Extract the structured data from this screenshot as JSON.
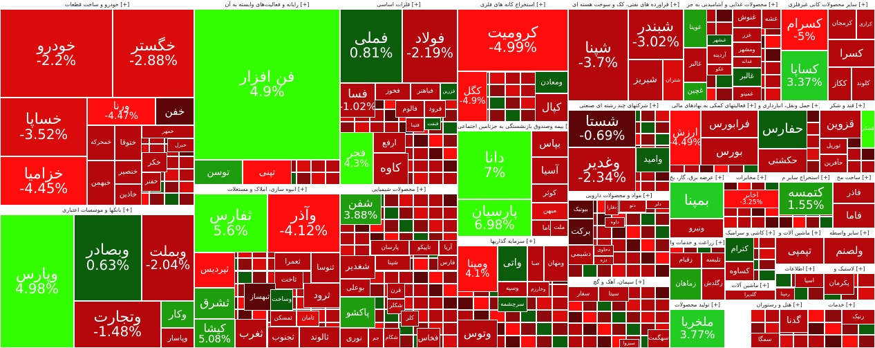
{
  "colors": {
    "strong_red": "#ff0d0d",
    "red": "#d90b0b",
    "dark_red": "#b3070b",
    "darker_red": "#8c0a0c",
    "maroon": "#5c0507",
    "dark_green": "#0b5c0b",
    "mid_green": "#1e9e0f",
    "bright_green": "#33ff00",
    "green": "#22cc22"
  },
  "sectors": [
    {
      "header": "خودرو و ساخت قطعات [+]",
      "tiles": [
        {
          "name": "خودرو",
          "pct": "-2.2%",
          "c": "red"
        },
        {
          "name": "خگستر",
          "pct": "-2.88%",
          "c": "red"
        },
        {
          "name": "خساپا",
          "pct": "-3.52%",
          "c": "red"
        },
        {
          "name": "ورنا",
          "pct": "-4.47%",
          "c": "strong_red"
        },
        {
          "name": "خفن",
          "pct": "",
          "c": "maroon"
        },
        {
          "name": "خمهر",
          "pct": "",
          "c": "dark_red"
        },
        {
          "name": "خبرل",
          "pct": "",
          "c": "dark_red"
        },
        {
          "name": "خمحرکه",
          "pct": "",
          "c": "dark_red"
        },
        {
          "name": "ختوقا",
          "pct": "",
          "c": "dark_red"
        },
        {
          "name": "خزامیا",
          "pct": "-4.45%",
          "c": "strong_red"
        },
        {
          "name": "خنصیر",
          "pct": "",
          "c": "dark_red"
        },
        {
          "name": "خبهمن",
          "pct": "",
          "c": "dark_red"
        },
        {
          "name": "خاذین",
          "pct": "",
          "c": "dark_red"
        },
        {
          "name": "خکر",
          "pct": "",
          "c": "dark_red"
        },
        {
          "name": "خفنر",
          "pct": "",
          "c": "dark_red"
        }
      ]
    },
    {
      "header": "رایانه و فعالیت‌های وابسته به آن [+]",
      "tiles": [
        {
          "name": "فن افزار",
          "pct": "4.9%",
          "c": "bright_green"
        },
        {
          "name": "توسن",
          "pct": "",
          "c": "mid_green"
        },
        {
          "name": "تپنی",
          "pct": "",
          "c": "strong_red"
        }
      ]
    },
    {
      "header": "فلزات اساسی [+]",
      "tiles": [
        {
          "name": "فملی",
          "pct": "0.81%",
          "c": "dark_green"
        },
        {
          "name": "فولاد",
          "pct": "-2.19%",
          "c": "dark_red"
        },
        {
          "name": "فخوز",
          "pct": "",
          "c": "dark_red"
        },
        {
          "name": "فباهنر",
          "pct": "",
          "c": "dark_red"
        },
        {
          "name": "فزرین",
          "pct": "",
          "c": "dark_green"
        },
        {
          "name": "فسا",
          "pct": "-1.02%",
          "c": "dark_red"
        },
        {
          "name": "فالوم",
          "pct": "",
          "c": "dark_red"
        },
        {
          "name": "فرود",
          "pct": "",
          "c": "dark_red"
        },
        {
          "name": "فنفت",
          "pct": "",
          "c": "dark_green"
        },
        {
          "name": "فتینا",
          "pct": "",
          "c": "dark_red"
        },
        {
          "name": "ارفع",
          "pct": "",
          "c": "dark_red"
        },
        {
          "name": "کاوه",
          "pct": "",
          "c": "dark_red"
        },
        {
          "name": "فجر",
          "pct": "4.3%",
          "c": "bright_green"
        }
      ]
    },
    {
      "header": "استخراج کانه های فلزی [+]",
      "tiles": [
        {
          "name": "کرومیت",
          "pct": "-4.99%",
          "c": "strong_red"
        },
        {
          "name": "کگل",
          "pct": "-4.9%",
          "c": "strong_red"
        },
        {
          "name": "ومعادن",
          "pct": "",
          "c": "dark_green"
        },
        {
          "name": "کپال",
          "pct": "",
          "c": "dark_red"
        }
      ]
    },
    {
      "header": "فراورده های نفتی، کک و سوخت هسته ای [+]",
      "tiles": [
        {
          "name": "شپنا",
          "pct": "-3.7%",
          "c": "dark_red"
        },
        {
          "name": "شبندر",
          "pct": "-3.02%",
          "c": "dark_red"
        },
        {
          "name": "شبریز",
          "pct": "",
          "c": "dark_red"
        },
        {
          "name": "شتران",
          "pct": "",
          "c": "red"
        }
      ]
    },
    {
      "header": "محصولات غذایی و آشامیدنی به جز [+]",
      "tiles": [
        {
          "name": "غویتا",
          "pct": "",
          "c": "mid_green"
        },
        {
          "name": "غالبر",
          "pct": "",
          "c": "dark_red"
        },
        {
          "name": "غشه",
          "pct": "",
          "c": "dark_red"
        },
        {
          "name": "غنوش",
          "pct": "",
          "c": "dark_red"
        },
        {
          "name": "غزر",
          "pct": "",
          "c": "dark_red"
        },
        {
          "name": "ومشهر",
          "pct": "",
          "c": "dark_red"
        },
        {
          "name": "غبشهر",
          "pct": "",
          "c": "dark_green"
        },
        {
          "name": "آردینه",
          "pct": "",
          "c": "dark_red"
        },
        {
          "name": "غدانه",
          "pct": "",
          "c": "dark_red"
        },
        {
          "name": "غکو",
          "pct": "",
          "c": "dark_red"
        },
        {
          "name": "غالبر",
          "pct": "",
          "c": "dark_green"
        },
        {
          "name": "غمینو",
          "pct": "",
          "c": "dark_red"
        },
        {
          "name": "غچین",
          "pct": "",
          "c": "mid_green"
        }
      ]
    },
    {
      "header": "سایر محصولات کانی غیرفلزی [+]",
      "tiles": [
        {
          "name": "کسرام",
          "pct": "-5%",
          "c": "strong_red"
        },
        {
          "name": "کرمجان",
          "pct": "",
          "c": "dark_red"
        },
        {
          "name": "کرازی",
          "pct": "",
          "c": "dark_red"
        },
        {
          "name": "کسرا",
          "pct": "",
          "c": "dark_red"
        },
        {
          "name": "کساپا",
          "pct": "3.37%",
          "c": "green"
        },
        {
          "name": "ککاز",
          "pct": "",
          "c": "dark_red"
        },
        {
          "name": "کلوند",
          "pct": "",
          "c": "dark_red"
        }
      ]
    },
    {
      "header": "بیمه وصندوق بازنشستگی به جزتامین اجتماعی [+]",
      "tiles": [
        {
          "name": "دانا",
          "pct": "7%",
          "c": "bright_green"
        },
        {
          "name": "بپاس",
          "pct": "",
          "c": "dark_red"
        },
        {
          "name": "آسیا",
          "pct": "",
          "c": "dark_red"
        },
        {
          "name": "کوثر",
          "pct": "",
          "c": "dark_red"
        },
        {
          "name": "میهن",
          "pct": "",
          "c": "red"
        },
        {
          "name": "پارسیان",
          "pct": "6.98%",
          "c": "bright_green"
        },
        {
          "name": "بساما",
          "pct": "",
          "c": "dark_red"
        },
        {
          "name": "ملت",
          "pct": "",
          "c": "dark_red"
        }
      ]
    },
    {
      "header": "شرکتهای چند رشته ای صنعتی [+]",
      "tiles": [
        {
          "name": "شستا",
          "pct": "-0.69%",
          "c": "maroon"
        },
        {
          "name": "وغدیر",
          "pct": "-2.34%",
          "c": "dark_red"
        },
        {
          "name": "وامید",
          "pct": "",
          "c": "dark_green"
        }
      ]
    },
    {
      "header": "فعالیتهای کمکی به نهادهای مالی [+]",
      "tiles": [
        {
          "name": "ارزش",
          "pct": "-4.49%",
          "c": "strong_red"
        },
        {
          "name": "فرابورس",
          "pct": "",
          "c": "dark_red"
        },
        {
          "name": "بورس",
          "pct": "",
          "c": "dark_red"
        }
      ]
    },
    {
      "header": "حمل ونقل، انبارداری و [+]",
      "tiles": [
        {
          "name": "حفارس",
          "pct": "",
          "c": "dark_green"
        },
        {
          "name": "حکشتی",
          "pct": "",
          "c": "dark_red"
        }
      ]
    },
    {
      "header": "قند و شکر [+]",
      "tiles": [
        {
          "name": "قزوین",
          "pct": "",
          "c": "dark_red"
        },
        {
          "name": "قشکر",
          "pct": "",
          "c": "bright_green"
        },
        {
          "name": "توریل",
          "pct": "",
          "c": "dark_red"
        },
        {
          "name": "حآفرین",
          "pct": "",
          "c": "dark_red"
        }
      ]
    },
    {
      "header": "بانکها و موسسات اعتباری [+]",
      "tiles": [
        {
          "name": "وپارس",
          "pct": "4.98%",
          "c": "bright_green"
        },
        {
          "name": "وبصادر",
          "pct": "0.63%",
          "c": "dark_green"
        },
        {
          "name": "وبملت",
          "pct": "-2.04%",
          "c": "dark_red"
        },
        {
          "name": "وتجارت",
          "pct": "-1.48%",
          "c": "dark_red"
        },
        {
          "name": "وکار",
          "pct": "",
          "c": "mid_green"
        },
        {
          "name": "وپاسار",
          "pct": "",
          "c": "dark_red"
        }
      ]
    },
    {
      "header": "انبوه سازی، املاک و مستغلات [+]",
      "tiles": [
        {
          "name": "ثفارس",
          "pct": "5.6%",
          "c": "bright_green"
        },
        {
          "name": "وآذر",
          "pct": "-4.12%",
          "c": "strong_red"
        },
        {
          "name": "ثاخت",
          "pct": "",
          "c": "dark_red"
        },
        {
          "name": "ثعمرا",
          "pct": "",
          "c": "dark_red"
        },
        {
          "name": "ثنوسا",
          "pct": "",
          "c": "dark_red"
        },
        {
          "name": "ثبهساز",
          "pct": "",
          "c": "maroon"
        },
        {
          "name": "ثپردیس",
          "pct": "",
          "c": "strong_red"
        },
        {
          "name": "ثشرق",
          "pct": "",
          "c": "mid_green"
        },
        {
          "name": "ثرود",
          "pct": "",
          "c": "dark_red"
        },
        {
          "name": "وساخت",
          "pct": "",
          "c": "dark_green"
        },
        {
          "name": "ثمسکن",
          "pct": "",
          "c": "dark_red"
        },
        {
          "name": "ثامان",
          "pct": "",
          "c": "red"
        },
        {
          "name": "ثالوند",
          "pct": "",
          "c": "dark_red"
        },
        {
          "name": "ثجنوب",
          "pct": "",
          "c": "dark_red"
        },
        {
          "name": "کیشا",
          "pct": "5.08%",
          "c": "mid_green"
        },
        {
          "name": "ثغرب",
          "pct": "",
          "c": "dark_red"
        }
      ]
    },
    {
      "header": "محصولات شیمیایی [+]",
      "tiles": [
        {
          "name": "شفن",
          "pct": "3.88%",
          "c": "mid_green"
        },
        {
          "name": "پارسان",
          "pct": "",
          "c": "dark_red"
        },
        {
          "name": "تاپیکو",
          "pct": "",
          "c": "dark_red"
        },
        {
          "name": "آریا",
          "pct": "",
          "c": "dark_red"
        },
        {
          "name": "شپنا",
          "pct": "",
          "c": "dark_red"
        },
        {
          "name": "فارس",
          "pct": "",
          "c": "dark_red"
        },
        {
          "name": "بوعلی",
          "pct": "",
          "c": "dark_red"
        },
        {
          "name": "شغدیر",
          "pct": "",
          "c": "dark_red"
        },
        {
          "name": "قرن",
          "pct": "",
          "c": "dark_red"
        },
        {
          "name": "پاکشو",
          "pct": "",
          "c": "mid_green"
        },
        {
          "name": "شکلر",
          "pct": "",
          "c": "dark_red"
        },
        {
          "name": "کلر",
          "pct": "",
          "c": "dark_red"
        },
        {
          "name": "نوری",
          "pct": "",
          "c": "dark_red"
        },
        {
          "name": "جم",
          "pct": "",
          "c": "dark_red"
        },
        {
          "name": "شکام",
          "pct": "",
          "c": "dark_red"
        },
        {
          "name": "فخاس",
          "pct": "",
          "c": "dark_red"
        }
      ]
    },
    {
      "header": "سرمایه گذاریها [+]",
      "tiles": [
        {
          "name": "واتی",
          "pct": "",
          "c": "dark_green"
        },
        {
          "name": "صبا",
          "pct": "",
          "c": "dark_red"
        },
        {
          "name": "ومهان",
          "pct": "",
          "c": "dark_red"
        },
        {
          "name": "وسپه",
          "pct": "",
          "c": "dark_red"
        },
        {
          "name": "ومپنا",
          "pct": "4.1%",
          "c": "strong_red"
        },
        {
          "name": "وخارزم",
          "pct": "",
          "c": "dark_red"
        },
        {
          "name": "سرچشمه",
          "pct": "",
          "c": "dark_green"
        },
        {
          "name": "وتوس",
          "pct": "",
          "c": "dark_red"
        }
      ]
    },
    {
      "header": "مواد و محصولات دارویی [+]",
      "tiles": [
        {
          "name": "دلر",
          "pct": "",
          "c": "dark_red"
        },
        {
          "name": "دتو",
          "pct": "",
          "c": "dark_red"
        },
        {
          "name": "دفارا",
          "pct": "",
          "c": "dark_red"
        },
        {
          "name": "بیوتیک",
          "pct": "",
          "c": "maroon"
        },
        {
          "name": "داوه",
          "pct": "",
          "c": "dark_red"
        },
        {
          "name": "برکت",
          "pct": "",
          "c": "maroon"
        },
        {
          "name": "دشیمی",
          "pct": "",
          "c": "dark_red"
        },
        {
          "name": "دحاوی",
          "pct": "",
          "c": "dark_red"
        },
        {
          "name": "دزه",
          "pct": "",
          "c": "dark_red"
        }
      ]
    },
    {
      "header": "سیمان، آهک و گچ [+]",
      "tiles": [
        {
          "name": "سفار",
          "pct": "",
          "c": "dark_red"
        },
        {
          "name": "سیتا",
          "pct": "",
          "c": "dark_red"
        },
        {
          "name": "سبزوا",
          "pct": "",
          "c": "dark_red"
        },
        {
          "name": "سهگمت",
          "pct": "",
          "c": "dark_red"
        }
      ]
    },
    {
      "header": "عرضه برق، گاز، بخ [+]",
      "tiles": [
        {
          "name": "بمپنا",
          "pct": "",
          "c": "green"
        },
        {
          "name": "ونیرو",
          "pct": "",
          "c": "dark_red"
        }
      ]
    },
    {
      "header": "مخابرات [+]",
      "tiles": [
        {
          "name": "اخابر",
          "pct": "-3.25%",
          "c": "strong_red"
        }
      ]
    },
    {
      "header": "استخراج سایر م [+]",
      "tiles": [
        {
          "name": "کتمسه",
          "pct": "1.55%",
          "c": "mid_green"
        }
      ]
    },
    {
      "header": "ساخت مح [+]",
      "tiles": [
        {
          "name": "فاذر",
          "pct": "",
          "c": "dark_red"
        },
        {
          "name": "فاما",
          "pct": "",
          "c": "dark_red"
        }
      ]
    },
    {
      "header": "زراعت و خدمات وا [+]",
      "tiles": [
        {
          "name": "زقیام",
          "pct": "",
          "c": "dark_red"
        },
        {
          "name": "تلیسه",
          "pct": "",
          "c": "dark_red"
        },
        {
          "name": "زماهان",
          "pct": "",
          "c": "mid_green"
        },
        {
          "name": "زگلدش",
          "pct": "",
          "c": "dark_red"
        }
      ]
    },
    {
      "header": "کاشی و سرامیک [+]",
      "tiles": [
        {
          "name": "کترام",
          "pct": "",
          "c": "dark_green"
        },
        {
          "name": "کساوه",
          "pct": "",
          "c": "dark_red"
        }
      ]
    },
    {
      "header": "ماشین آلات و [+]",
      "tiles": [
        {
          "name": "تپمپی",
          "pct": "",
          "c": "dark_red"
        }
      ]
    },
    {
      "header": "سایر واسطه [+]",
      "tiles": [
        {
          "name": "ولصنم",
          "pct": "",
          "c": "dark_red"
        }
      ]
    },
    {
      "header": "هتل و رستوران [+]",
      "tiles": [
        {
          "name": "گدنا",
          "pct": "",
          "c": "dark_red"
        },
        {
          "name": "سمگا",
          "pct": "",
          "c": "dark_red"
        }
      ]
    },
    {
      "header": "تولید محصولات [+]",
      "tiles": [
        {
          "name": "ملخریا",
          "pct": "3.77%",
          "c": "green"
        }
      ]
    },
    {
      "header": "اطلاعات [+]",
      "tiles": [
        {
          "name": "اسیا",
          "pct": "",
          "c": "dark_red"
        },
        {
          "name": "رمپنا",
          "pct": "",
          "c": "dark_red"
        }
      ]
    },
    {
      "header": "ماشین آلات [+]",
      "tiles": [
        {
          "name": "گلدیرا",
          "pct": "",
          "c": "dark_red"
        }
      ]
    },
    {
      "header": "خدمات [+]",
      "tiles": [
        {
          "name": "رنیک",
          "pct": "",
          "c": "dark_red"
        }
      ]
    },
    {
      "header": "لاستیک و [+]",
      "tiles": [
        {
          "name": "پکرمان",
          "pct": "",
          "c": "dark_red"
        }
      ]
    }
  ]
}
